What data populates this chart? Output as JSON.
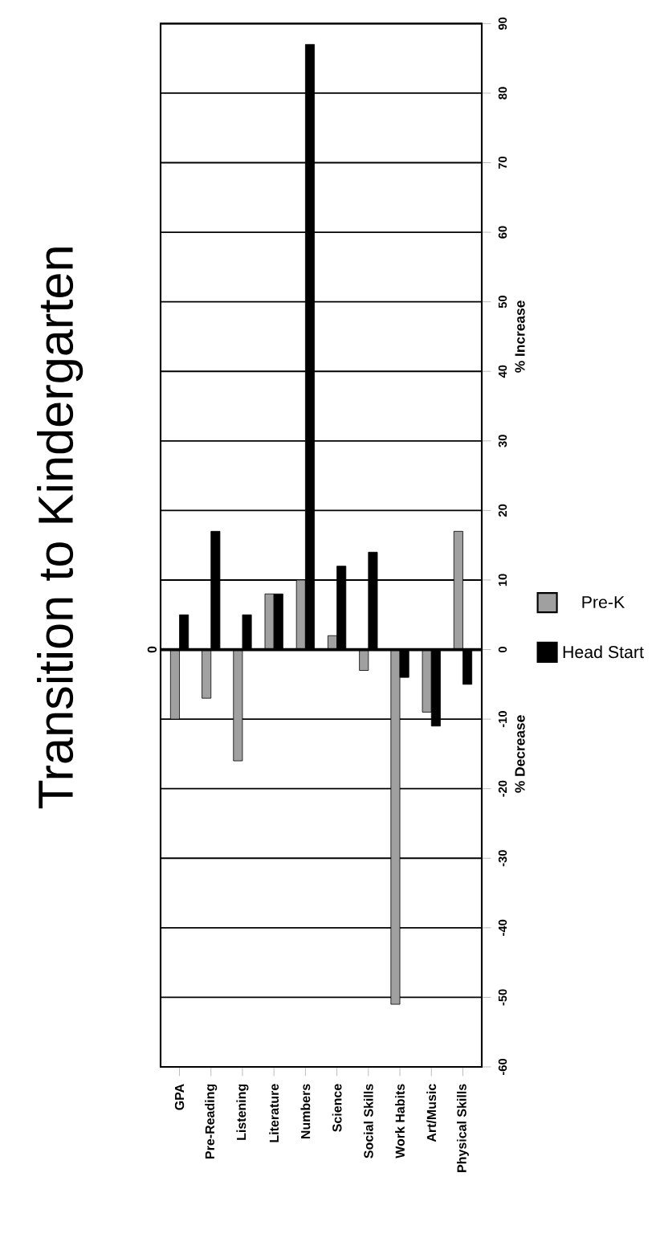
{
  "chart_data": {
    "type": "bar",
    "title": "Transition to Kindergarten",
    "categories": [
      "GPA",
      "Pre-Reading",
      "Listening",
      "Literature",
      "Numbers",
      "Science",
      "Social Skills",
      "Work Habits",
      "Art/Music",
      "Physical Skills"
    ],
    "series": [
      {
        "name": "Pre-K",
        "color": "#a0a0a0",
        "values": [
          -10,
          -7,
          -16,
          8,
          10,
          2,
          -3,
          -51,
          -9,
          17
        ]
      },
      {
        "name": "Head Start",
        "color": "#000000",
        "values": [
          5,
          17,
          5,
          8,
          87,
          12,
          14,
          -4,
          -11,
          -5
        ]
      }
    ],
    "ylim": [
      -60,
      90
    ],
    "yticks": [
      -60,
      -50,
      -40,
      -30,
      -20,
      -10,
      0,
      10,
      20,
      30,
      40,
      50,
      60,
      70,
      80,
      90
    ],
    "grid": "y",
    "legend": "right",
    "ref_lines": [
      {
        "axis": "y",
        "value": 0,
        "label": "0"
      }
    ],
    "annotations": [
      "% Decrease",
      "% Increase"
    ]
  }
}
